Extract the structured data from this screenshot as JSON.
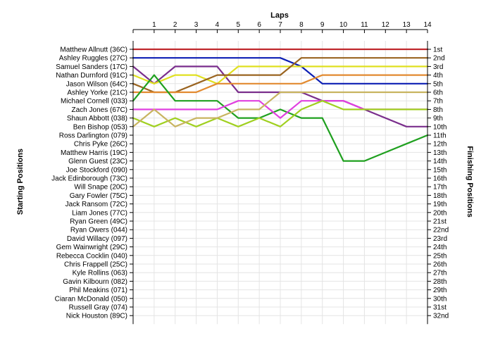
{
  "chart_data": {
    "type": "line",
    "title": "",
    "xlabel": "Laps",
    "ylabel_left": "Starting Positions",
    "ylabel_right": "Finishing Positions",
    "x_ticks": [
      1,
      2,
      3,
      4,
      5,
      6,
      7,
      8,
      9,
      10,
      11,
      12,
      13,
      14
    ],
    "xlim": [
      0,
      14
    ],
    "ylim": [
      1,
      32
    ],
    "y_inverted": true,
    "grid": true,
    "drivers": [
      "Matthew Allnutt (36C)",
      "Ashley Ruggles (27C)",
      "Samuel Sanders (17C)",
      "Nathan Durnford (91C)",
      "Jason Wilson (64C)",
      "Ashley Yorke (21C)",
      "Michael Cornell (033)",
      "Zach Jones (67C)",
      "Shaun Abbott (038)",
      "Ben Bishop (053)",
      "Ross Darlington (079)",
      "Chris Pyke (26C)",
      "Matthew Harris (19C)",
      "Glenn Guest (23C)",
      "Joe Stockford (090)",
      "Jack Edinborough (73C)",
      "Will Snape (20C)",
      "Gary Fowler (75C)",
      "Jack Ransom (72C)",
      "Liam Jones (77C)",
      "Ryan Green (49C)",
      "Ryan Owers (044)",
      "David Willacy (097)",
      "Gem Wainwright (29C)",
      "Rebecca Cocklin (040)",
      "Chris Frappell (25C)",
      "Kyle Rollins (063)",
      "Gavin Kilbourn (082)",
      "Phil Meakins (071)",
      "Ciaran McDonald (050)",
      "Russell Gray (074)",
      "Nick Houston (89C)"
    ],
    "finishing_labels": [
      "1st",
      "2nd",
      "3rd",
      "4th",
      "5th",
      "6th",
      "7th",
      "8th",
      "9th",
      "10th",
      "11th",
      "12th",
      "13th",
      "14th",
      "15th",
      "16th",
      "17th",
      "18th",
      "19th",
      "20th",
      "21st",
      "22nd",
      "23rd",
      "24th",
      "25th",
      "26th",
      "27th",
      "28th",
      "29th",
      "30th",
      "31st",
      "32nd"
    ],
    "series": [
      {
        "color": "#c0282d",
        "values": [
          1,
          1,
          1,
          1,
          1,
          1,
          1,
          1,
          1,
          1,
          1,
          1,
          1,
          1,
          1
        ]
      },
      {
        "color": "#0c1eb4",
        "values": [
          2,
          2,
          2,
          2,
          2,
          2,
          2,
          2,
          3,
          5,
          5,
          5,
          5,
          5,
          5
        ]
      },
      {
        "color": "#7a2e8c",
        "values": [
          3,
          5,
          3,
          3,
          3,
          6,
          6,
          6,
          6,
          7,
          7,
          8,
          9,
          10,
          10
        ]
      },
      {
        "color": "#e0e020",
        "values": [
          4,
          5,
          4,
          4,
          5,
          3,
          3,
          3,
          3,
          3,
          3,
          3,
          3,
          3,
          3
        ]
      },
      {
        "color": "#9a6420",
        "values": [
          5,
          6,
          6,
          5,
          4,
          4,
          4,
          4,
          2,
          2,
          2,
          2,
          2,
          2,
          2
        ]
      },
      {
        "color": "#e28a30",
        "values": [
          6,
          6,
          6,
          6,
          5,
          5,
          5,
          5,
          5,
          4,
          4,
          4,
          4,
          4,
          4
        ]
      },
      {
        "color": "#1fa01f",
        "values": [
          7,
          4,
          7,
          7,
          7,
          9,
          9,
          8,
          9,
          9,
          14,
          14,
          13,
          12,
          11
        ]
      },
      {
        "color": "#e040e0",
        "values": [
          8,
          8,
          8,
          8,
          8,
          7,
          7,
          9,
          7,
          7,
          7,
          8,
          8,
          8,
          8
        ]
      },
      {
        "color": "#a0d020",
        "values": [
          9,
          10,
          9,
          10,
          9,
          10,
          9,
          10,
          8,
          7,
          8,
          8,
          8,
          8,
          8
        ]
      },
      {
        "color": "#c8b460",
        "values": [
          10,
          8,
          10,
          9,
          9,
          8,
          8,
          6,
          6,
          6,
          6,
          6,
          6,
          6,
          6
        ]
      }
    ]
  }
}
